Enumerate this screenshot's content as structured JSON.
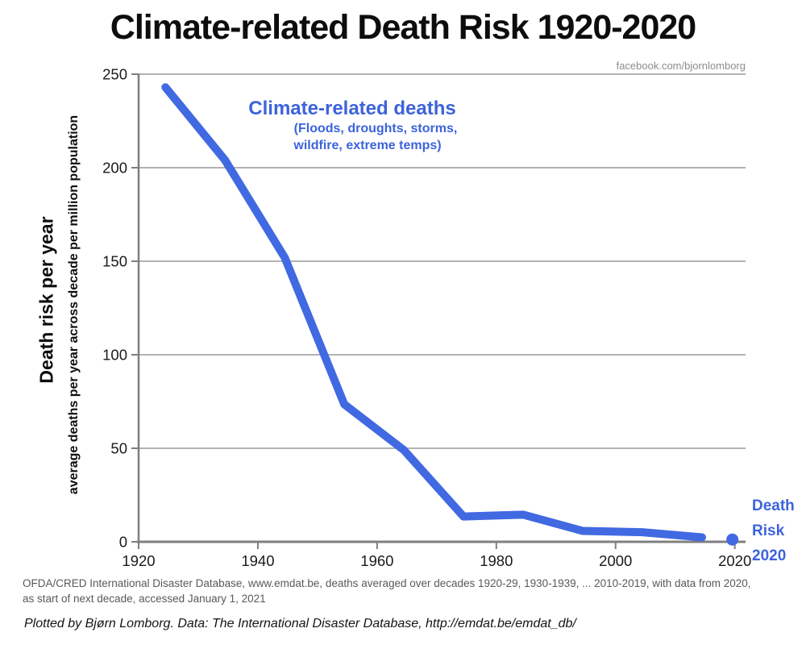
{
  "page": {
    "title": "Climate-related Death Risk 1920-2020",
    "watermark": "facebook.com/bjornlomborg"
  },
  "y_axis": {
    "title": "Death risk per year",
    "subtitle": "average deaths per year across decade per million population"
  },
  "annotation": {
    "heading": "Climate-related deaths",
    "sub_line1": "(Floods, droughts, storms,",
    "sub_line2": "wildfire, extreme temps)"
  },
  "point_label": {
    "line1": "Death",
    "line2": "Risk",
    "line3": "2020"
  },
  "footer": {
    "source_line1": "OFDA/CRED International Disaster Database, www.emdat.be, deaths averaged over decades 1920-29, 1930-1939, ... 2010-2019, with data from 2020,",
    "source_line2": "as start of next decade, accessed January 1, 2021",
    "credit": "Plotted by Bjørn Lomborg. Data: The International Disaster Database, http://emdat.be/emdat_db/"
  },
  "colors": {
    "line_blue": "#4169E1",
    "label_blue": "#3D63DC",
    "grid_gray": "#999999",
    "axis_gray": "#7F7F7F",
    "tick_text": "#1a1a1a"
  },
  "chart_data": {
    "type": "line",
    "title": "Climate-related Death Risk 1920-2020",
    "xlabel": "",
    "ylabel": "Death risk per year (average deaths per year across decade per million population)",
    "decade_labels": [
      "1920s",
      "1930s",
      "1940s",
      "1950s",
      "1960s",
      "1970s",
      "1980s",
      "1990s",
      "2000s",
      "2010s"
    ],
    "x": [
      1924.5,
      1934.5,
      1944.5,
      1954.5,
      1964.5,
      1974.5,
      1984.5,
      1994.5,
      2004.5,
      2014.5
    ],
    "values": [
      243,
      204,
      152,
      73.5,
      49,
      13.5,
      14.5,
      5.8,
      5.1,
      2.4
    ],
    "extra_point": {
      "x": 2020,
      "value": 1.2,
      "label": "Death Risk 2020"
    },
    "x_ticks": [
      1920,
      1940,
      1960,
      1980,
      2000,
      2020
    ],
    "y_ticks": [
      0,
      50,
      100,
      150,
      200,
      250
    ],
    "xlim": [
      1920,
      2021.8
    ],
    "ylim": [
      0,
      250
    ],
    "grid": "horizontal",
    "legend_position": "none"
  }
}
